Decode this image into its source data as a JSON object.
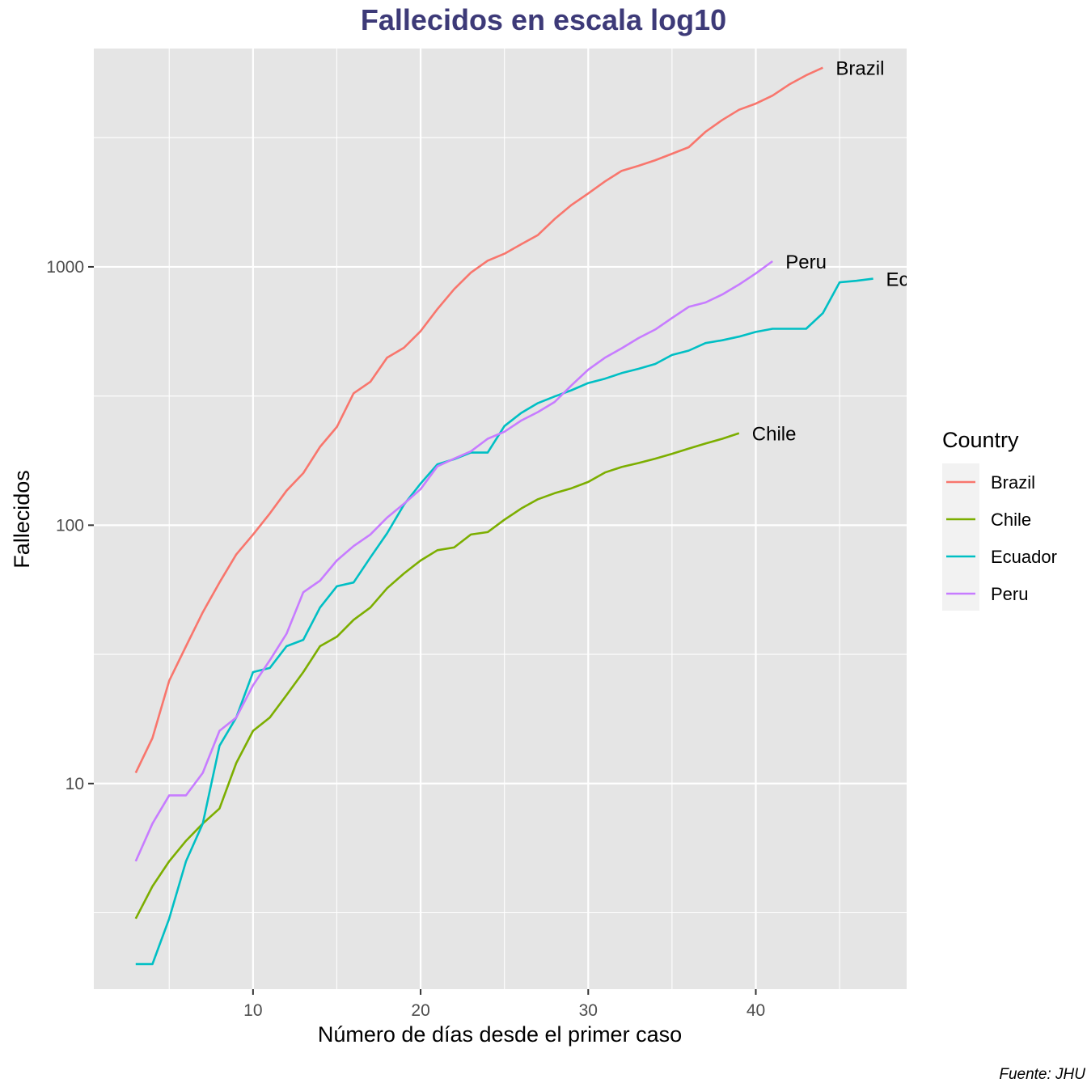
{
  "chart_data": {
    "type": "line",
    "title": "Fallecidos en escala log10",
    "xlabel": "Número de días desde el primer caso",
    "ylabel": "Fallecidos",
    "caption": "Fuente: JHU",
    "y_scale": "log10",
    "xlim": [
      0.5,
      49.0
    ],
    "ylim": [
      1.6,
      7000
    ],
    "x_ticks": [
      10,
      20,
      30,
      40
    ],
    "x_tick_labels": [
      "10",
      "20",
      "30",
      "40"
    ],
    "y_ticks": [
      10,
      100,
      1000
    ],
    "y_tick_labels": [
      "10",
      "100",
      "1000"
    ],
    "grid": true,
    "legend": {
      "title": "Country",
      "position": "right"
    },
    "series": [
      {
        "name": "Brazil",
        "color": "#f8766d",
        "label": "Brazil",
        "x": [
          3,
          4,
          5,
          6,
          7,
          8,
          9,
          10,
          11,
          12,
          13,
          14,
          15,
          16,
          17,
          18,
          19,
          20,
          21,
          22,
          23,
          24,
          25,
          26,
          27,
          28,
          29,
          30,
          31,
          32,
          33,
          34,
          35,
          36,
          37,
          38,
          39,
          40,
          41,
          42,
          43,
          44
        ],
        "y": [
          11,
          15,
          25,
          34,
          46,
          60,
          77,
          92,
          111,
          136,
          159,
          201,
          240,
          324,
          359,
          445,
          486,
          564,
          686,
          819,
          950,
          1057,
          1124,
          1223,
          1328,
          1532,
          1736,
          1924,
          2141,
          2354,
          2462,
          2587,
          2741,
          2906,
          3331,
          3704,
          4057,
          4286,
          4603,
          5083,
          5513,
          5901
        ]
      },
      {
        "name": "Chile",
        "color": "#7cae00",
        "label": "Chile",
        "x": [
          3,
          4,
          5,
          6,
          7,
          8,
          9,
          10,
          11,
          12,
          13,
          14,
          15,
          16,
          17,
          18,
          19,
          20,
          21,
          22,
          23,
          24,
          25,
          26,
          27,
          28,
          29,
          30,
          31,
          32,
          33,
          34,
          35,
          36,
          37,
          38,
          39
        ],
        "y": [
          3,
          4,
          5,
          6,
          7,
          8,
          12,
          16,
          18,
          22,
          27,
          34,
          37,
          43,
          48,
          57,
          65,
          73,
          80,
          82,
          92,
          94,
          105,
          116,
          126,
          133,
          139,
          147,
          160,
          168,
          174,
          181,
          189,
          198,
          207,
          216,
          227
        ]
      },
      {
        "name": "Ecuador",
        "color": "#00bfc4",
        "label": "Ec",
        "x": [
          3,
          4,
          5,
          6,
          7,
          8,
          9,
          10,
          11,
          12,
          13,
          14,
          15,
          16,
          17,
          18,
          19,
          20,
          21,
          22,
          23,
          24,
          25,
          26,
          27,
          28,
          29,
          30,
          31,
          32,
          33,
          34,
          35,
          36,
          37,
          38,
          39,
          40,
          41,
          42,
          43,
          44,
          45,
          46,
          47
        ],
        "y": [
          2,
          2,
          3,
          5,
          7,
          14,
          18,
          27,
          28,
          34,
          36,
          48,
          58,
          60,
          75,
          93,
          120,
          145,
          172,
          180,
          191,
          191,
          242,
          272,
          297,
          315,
          333,
          355,
          369,
          388,
          403,
          421,
          456,
          474,
          507,
          520,
          537,
          560,
          576,
          576,
          576,
          662,
          871,
          883,
          900
        ]
      },
      {
        "name": "Peru",
        "color": "#c77cff",
        "label": "Peru",
        "x": [
          3,
          4,
          5,
          6,
          7,
          8,
          9,
          10,
          11,
          12,
          13,
          14,
          15,
          16,
          17,
          18,
          19,
          20,
          21,
          22,
          23,
          24,
          25,
          26,
          27,
          28,
          29,
          30,
          31,
          32,
          33,
          34,
          35,
          36,
          37,
          38,
          39,
          40,
          41
        ],
        "y": [
          5,
          7,
          9,
          9,
          11,
          16,
          18,
          24,
          30,
          38,
          55,
          61,
          73,
          83,
          92,
          107,
          121,
          138,
          169,
          181,
          193,
          216,
          230,
          254,
          274,
          300,
          348,
          400,
          445,
          484,
          530,
          572,
          634,
          700,
          728,
          782,
          854,
          943,
          1051
        ]
      }
    ]
  }
}
